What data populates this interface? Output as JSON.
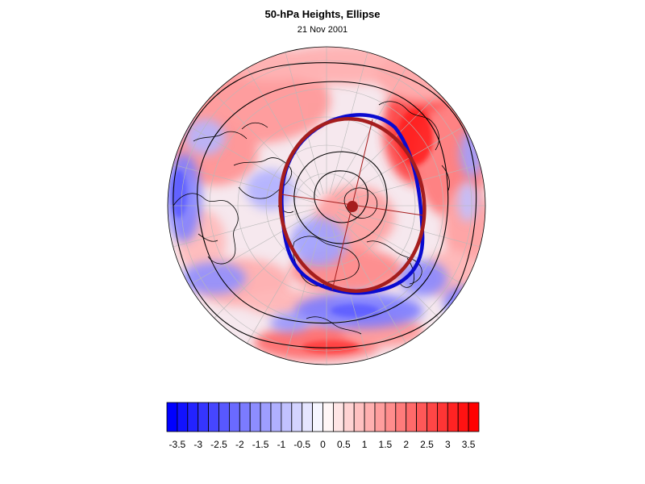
{
  "title": "50-hPa Heights, Ellipse",
  "subtitle": "21 Nov 2001",
  "colors": {
    "negative": "#0000ff",
    "positive": "#ff0000",
    "observed_contour": "#0a0ad0",
    "fitted_ellipse": "#a51d1d",
    "contour_lines": "#000000",
    "coastline": "#000000",
    "grid": "#b8b8b8"
  },
  "colorbar": {
    "min": -3.75,
    "max": 3.75,
    "step": 0.25,
    "tick_labels": [
      "-3.5",
      "-3",
      "-2.5",
      "-2",
      "-1.5",
      "-1",
      "-0.5",
      "0",
      "0.5",
      "1",
      "1.5",
      "2",
      "2.5",
      "3",
      "3.5"
    ]
  },
  "map": {
    "projection": "polar stereographic (North Pole)",
    "shading": "standardized height anomaly",
    "ellipse_center_marker": "filled circle",
    "ellipse_axes_drawn": true
  }
}
